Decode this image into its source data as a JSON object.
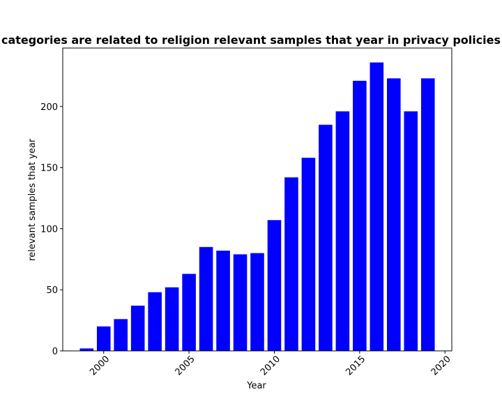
{
  "chart_data": {
    "type": "bar",
    "title": "categories are related to religion relevant samples that year in privacy policies",
    "xlabel": "Year",
    "ylabel": "relevant samples that year",
    "x": [
      1999,
      2000,
      2001,
      2002,
      2003,
      2004,
      2005,
      2006,
      2007,
      2008,
      2009,
      2010,
      2011,
      2012,
      2013,
      2014,
      2015,
      2016,
      2017,
      2018,
      2019
    ],
    "values": [
      2,
      20,
      26,
      37,
      48,
      52,
      63,
      85,
      82,
      79,
      80,
      107,
      142,
      158,
      185,
      196,
      221,
      236,
      223,
      196,
      223
    ],
    "xlim": [
      1997.6,
      2020.4
    ],
    "ylim": [
      0,
      247.8
    ],
    "xticks": [
      2000,
      2005,
      2010,
      2015,
      2020
    ],
    "xtick_labels": [
      "2000",
      "2005",
      "2010",
      "2015",
      "2020"
    ],
    "yticks": [
      0,
      50,
      100,
      150,
      200
    ],
    "ytick_labels": [
      "0",
      "50",
      "100",
      "150",
      "200"
    ],
    "bar_color": "#0000ff",
    "grid": false,
    "legend": "none"
  }
}
